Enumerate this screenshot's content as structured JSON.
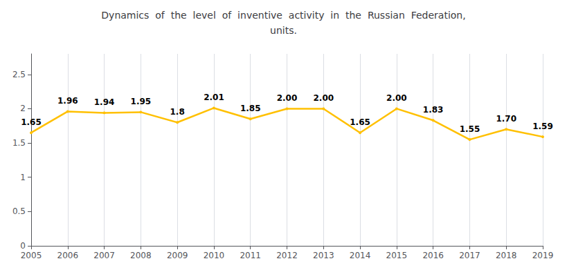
{
  "chart_data": {
    "type": "line",
    "title": "Dynamics  of  the  level  of  inventive  activity  in  the  Russian  Federation,\nunits.",
    "x": [
      2005,
      2006,
      2007,
      2008,
      2009,
      2010,
      2011,
      2012,
      2013,
      2014,
      2015,
      2016,
      2017,
      2018,
      2019
    ],
    "values": [
      1.65,
      1.96,
      1.94,
      1.95,
      1.8,
      2.01,
      1.85,
      2.0,
      2.0,
      1.65,
      2.0,
      1.83,
      1.55,
      1.7,
      1.59
    ],
    "value_labels": [
      "1.65",
      "1.96",
      "1.94",
      "1.95",
      "1.8",
      "2.01",
      "1.85",
      "2.00",
      "2.00",
      "1.65",
      "2.00",
      "1.83",
      "1.55",
      "1.70",
      "1.59"
    ],
    "data_labels": true,
    "color": "#FFC000",
    "xlim": [
      2005,
      2019
    ],
    "xticks": [
      2005,
      2006,
      2007,
      2008,
      2009,
      2010,
      2011,
      2012,
      2013,
      2014,
      2015,
      2016,
      2017,
      2018,
      2019
    ],
    "ylim": [
      0,
      2.8
    ],
    "yticks": [
      0,
      0.5,
      1,
      1.5,
      2,
      2.5
    ],
    "grid": "x"
  }
}
